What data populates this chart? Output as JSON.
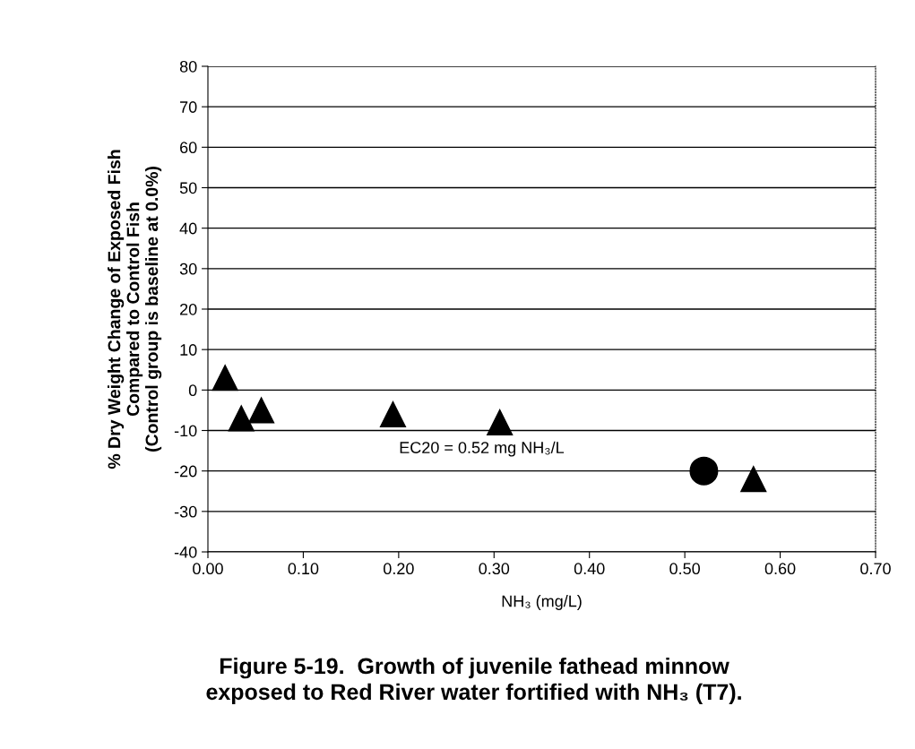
{
  "chart_data": {
    "type": "scatter",
    "title": "Figure 5-19.  Growth of juvenile fathead minnow\nexposed to Red River water fortified with NH₃ (T7).",
    "xlabel": "NH₃ (mg/L)",
    "ylabel": "% Dry Weight Change of Exposed Fish\nCompared to Control Fish\n(Control group is baseline at 0.0%)",
    "series": [
      {
        "color": "#000000",
        "marker": "triangle",
        "x": [
          0.018,
          0.035,
          0.056,
          0.194,
          0.306,
          0.572
        ],
        "values": [
          3,
          -7,
          -5,
          -6,
          -8,
          -22
        ]
      },
      {
        "color": "#000000",
        "marker": "circle",
        "x": [
          0.52
        ],
        "values": [
          -20
        ]
      }
    ],
    "annotations": [
      "EC20 = 0.52 mg NH₃/L"
    ],
    "xlim": [
      0,
      0.7
    ],
    "xticks": [
      {
        "value": 0,
        "label": "0.00"
      },
      {
        "value": 0.1,
        "label": "0.10"
      },
      {
        "value": 0.2,
        "label": "0.20"
      },
      {
        "value": 0.3,
        "label": "0.30"
      },
      {
        "value": 0.4,
        "label": "0.40"
      },
      {
        "value": 0.5,
        "label": "0.50"
      },
      {
        "value": 0.6,
        "label": "0.60"
      },
      {
        "value": 0.7,
        "label": "0.70"
      }
    ],
    "ylim": [
      -40,
      80
    ],
    "yticks": [
      -40,
      -30,
      -20,
      -10,
      0,
      10,
      20,
      30,
      40,
      50,
      60,
      70,
      80
    ],
    "grid": "y",
    "legend": false
  }
}
